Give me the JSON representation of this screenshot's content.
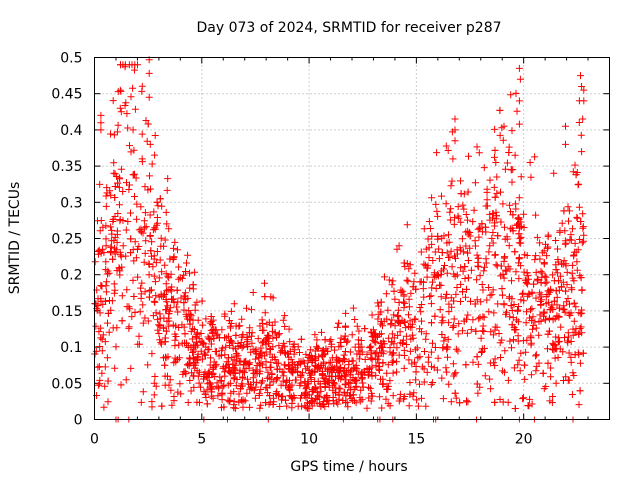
{
  "chart_data": {
    "type": "scatter",
    "title": "Day 073 of 2024, SRMTID for receiver p287",
    "xlabel": "GPS time / hours",
    "ylabel": "SRMTID / TECUs",
    "xlim": [
      0,
      24
    ],
    "ylim": [
      0,
      0.5
    ],
    "x_ticks": [
      0,
      5,
      10,
      15,
      20
    ],
    "x_tick_labels": [
      "0",
      "5",
      "10",
      "15",
      "20"
    ],
    "y_ticks": [
      0,
      0.05,
      0.1,
      0.15,
      0.2,
      0.25,
      0.3,
      0.35,
      0.4,
      0.45,
      0.5
    ],
    "y_tick_labels": [
      "0",
      "0.05",
      "0.1",
      "0.15",
      "0.2",
      "0.25",
      "0.3",
      "0.35",
      "0.4",
      "0.45",
      "0.5"
    ],
    "grid": true,
    "marker": "plus",
    "color": "#ff0000",
    "series": [
      {
        "name": "SRMTID",
        "profile_x": [
          0.0,
          0.3,
          0.6,
          1.0,
          1.4,
          1.8,
          2.2,
          2.6,
          3.0,
          3.5,
          4.0,
          4.5,
          5.0,
          5.5,
          6.0,
          6.5,
          7.0,
          7.5,
          8.0,
          8.5,
          9.0,
          9.5,
          10.0,
          10.5,
          11.0,
          11.5,
          12.0,
          12.5,
          13.0,
          13.5,
          14.0,
          14.5,
          15.0,
          15.5,
          16.0,
          16.5,
          17.0,
          17.5,
          18.0,
          18.5,
          19.0,
          19.5,
          20.0,
          20.5,
          21.0,
          21.5,
          22.0,
          22.5,
          22.8
        ],
        "profile_y": [
          0.17,
          0.18,
          0.2,
          0.23,
          0.3,
          0.33,
          0.27,
          0.22,
          0.18,
          0.15,
          0.13,
          0.11,
          0.09,
          0.08,
          0.075,
          0.08,
          0.085,
          0.08,
          0.09,
          0.085,
          0.07,
          0.065,
          0.06,
          0.065,
          0.06,
          0.065,
          0.07,
          0.065,
          0.08,
          0.1,
          0.115,
          0.13,
          0.15,
          0.16,
          0.18,
          0.19,
          0.2,
          0.2,
          0.19,
          0.2,
          0.22,
          0.21,
          0.18,
          0.17,
          0.15,
          0.15,
          0.17,
          0.2,
          0.25
        ],
        "spread": 0.45,
        "count": 2400
      }
    ],
    "spikes": [
      {
        "x": 2.55,
        "y": 0.497
      },
      {
        "x": 2.55,
        "y": 0.478
      },
      {
        "x": 2.55,
        "y": 0.445
      },
      {
        "x": 1.2,
        "y": 0.43
      },
      {
        "x": 1.25,
        "y": 0.425
      },
      {
        "x": 0.3,
        "y": 0.42
      },
      {
        "x": 0.3,
        "y": 0.41
      },
      {
        "x": 0.3,
        "y": 0.4
      },
      {
        "x": 1.8,
        "y": 0.4
      },
      {
        "x": 2.4,
        "y": 0.413
      },
      {
        "x": 2.6,
        "y": 0.38
      },
      {
        "x": 19.8,
        "y": 0.485
      },
      {
        "x": 19.85,
        "y": 0.47
      },
      {
        "x": 19.8,
        "y": 0.44
      },
      {
        "x": 19.8,
        "y": 0.408
      },
      {
        "x": 22.65,
        "y": 0.475
      },
      {
        "x": 22.7,
        "y": 0.46
      },
      {
        "x": 22.8,
        "y": 0.455
      },
      {
        "x": 22.8,
        "y": 0.44
      },
      {
        "x": 22.75,
        "y": 0.415
      },
      {
        "x": 16.8,
        "y": 0.415
      },
      {
        "x": 16.8,
        "y": 0.4
      },
      {
        "x": 16.8,
        "y": 0.385
      },
      {
        "x": 16.7,
        "y": 0.36
      },
      {
        "x": 21.95,
        "y": 0.405
      },
      {
        "x": 21.95,
        "y": 0.38
      },
      {
        "x": 22.7,
        "y": 0.37
      },
      {
        "x": 19.6,
        "y": 0.365
      },
      {
        "x": 18.7,
        "y": 0.355
      },
      {
        "x": 18.75,
        "y": 0.335
      },
      {
        "x": 20.3,
        "y": 0.355
      },
      {
        "x": 21.4,
        "y": 0.34
      }
    ],
    "markers_at_zero": [
      1.0,
      1.1,
      1.6,
      5.1,
      6.2,
      8.1,
      11.6,
      13.2,
      13.3,
      13.9,
      15.8,
      15.9,
      17.8,
      19.8,
      20.5,
      22.3
    ]
  }
}
